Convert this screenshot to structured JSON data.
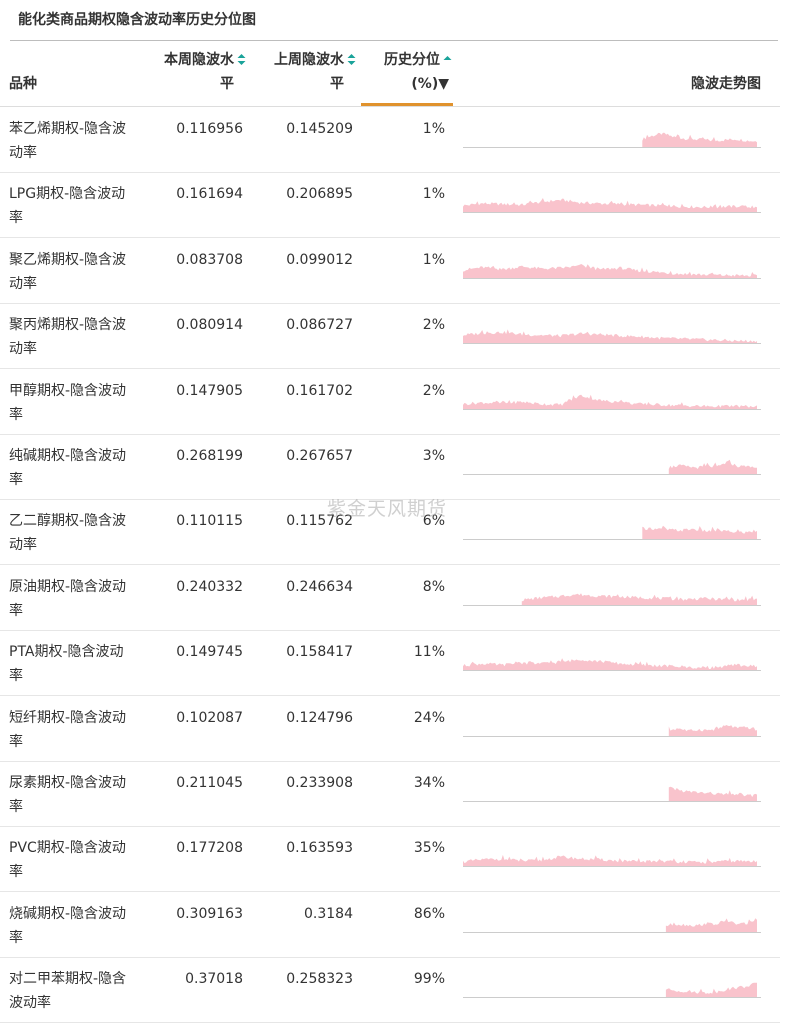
{
  "title": "能化类商品期权隐含波动率历史分位图",
  "watermark": "紫金天风期货",
  "header": {
    "variety": "品种",
    "this_week_line1": "本周隐波水",
    "this_week_line2": "平",
    "last_week_line1": "上周隐波水",
    "last_week_line2": "平",
    "pct_line1": "历史分位",
    "pct_line2": "(%)▼",
    "trend": "隐波走势图",
    "sort_color": "#1aa39a",
    "active_color": "#e0922d"
  },
  "rows": [
    {
      "name": "苯乙烯期权-隐含波动率",
      "this_week": "0.116956",
      "last_week": "0.145209",
      "pct": "1%"
    },
    {
      "name": "LPG期权-隐含波动率",
      "this_week": "0.161694",
      "last_week": "0.206895",
      "pct": "1%"
    },
    {
      "name": "聚乙烯期权-隐含波动率",
      "this_week": "0.083708",
      "last_week": "0.099012",
      "pct": "1%"
    },
    {
      "name": "聚丙烯期权-隐含波动率",
      "this_week": "0.080914",
      "last_week": "0.086727",
      "pct": "2%"
    },
    {
      "name": "甲醇期权-隐含波动率",
      "this_week": "0.147905",
      "last_week": "0.161702",
      "pct": "2%"
    },
    {
      "name": "纯碱期权-隐含波动率",
      "this_week": "0.268199",
      "last_week": "0.267657",
      "pct": "3%"
    },
    {
      "name": "乙二醇期权-隐含波动率",
      "this_week": "0.110115",
      "last_week": "0.115762",
      "pct": "6%"
    },
    {
      "name": "原油期权-隐含波动率",
      "this_week": "0.240332",
      "last_week": "0.246634",
      "pct": "8%"
    },
    {
      "name": "PTA期权-隐含波动率",
      "this_week": "0.149745",
      "last_week": "0.158417",
      "pct": "11%"
    },
    {
      "name": "短纤期权-隐含波动率",
      "this_week": "0.102087",
      "last_week": "0.124796",
      "pct": "24%"
    },
    {
      "name": "尿素期权-隐含波动率",
      "this_week": "0.211045",
      "last_week": "0.233908",
      "pct": "34%"
    },
    {
      "name": "PVC期权-隐含波动率",
      "this_week": "0.177208",
      "last_week": "0.163593",
      "pct": "35%"
    },
    {
      "name": "烧碱期权-隐含波动率",
      "this_week": "0.309163",
      "last_week": "0.3184",
      "pct": "86%"
    },
    {
      "name": "对二甲苯期权-隐含波动率",
      "this_week": "0.37018",
      "last_week": "0.258323",
      "pct": "99%"
    }
  ],
  "chart_data": {
    "type": "area",
    "description_series": "sparkline of implied volatility history per row; start = fraction of full history window where data begins; profile = relative level pattern",
    "fill_color": "#f9c3cc",
    "baseline_color": "#cccccc",
    "sparklines": [
      {
        "start": 0.61,
        "profile": [
          0.55,
          0.8,
          0.95,
          0.7,
          0.6,
          0.55,
          0.5,
          0.45,
          0.5,
          0.55,
          0.45,
          0.4
        ]
      },
      {
        "start": 0.0,
        "profile": [
          0.45,
          0.6,
          0.55,
          0.5,
          0.7,
          0.85,
          0.65,
          0.6,
          0.55,
          0.5,
          0.45,
          0.4,
          0.35,
          0.35,
          0.4,
          0.3
        ]
      },
      {
        "start": 0.0,
        "profile": [
          0.55,
          0.75,
          0.6,
          0.8,
          0.65,
          0.7,
          0.85,
          0.6,
          0.7,
          0.5,
          0.4,
          0.3,
          0.25,
          0.2,
          0.18,
          0.15
        ]
      },
      {
        "start": 0.0,
        "profile": [
          0.55,
          0.7,
          0.75,
          0.6,
          0.55,
          0.5,
          0.65,
          0.6,
          0.5,
          0.45,
          0.35,
          0.3,
          0.25,
          0.2,
          0.15,
          0.12
        ]
      },
      {
        "start": 0.0,
        "profile": [
          0.35,
          0.45,
          0.4,
          0.5,
          0.35,
          0.3,
          0.95,
          0.6,
          0.45,
          0.35,
          0.3,
          0.25,
          0.2,
          0.18,
          0.2,
          0.15
        ]
      },
      {
        "start": 0.7,
        "profile": [
          0.45,
          0.6,
          0.5,
          0.45,
          0.55,
          0.5,
          0.85,
          0.55,
          0.5,
          0.45
        ]
      },
      {
        "start": 0.61,
        "profile": [
          0.75,
          0.7,
          0.65,
          0.6,
          0.7,
          0.55,
          0.6,
          0.5,
          0.45,
          0.55
        ]
      },
      {
        "start": 0.2,
        "profile": [
          0.35,
          0.5,
          0.6,
          0.75,
          0.65,
          0.6,
          0.55,
          0.5,
          0.45,
          0.4,
          0.45,
          0.4,
          0.35,
          0.4
        ]
      },
      {
        "start": 0.0,
        "profile": [
          0.3,
          0.45,
          0.35,
          0.5,
          0.45,
          0.55,
          0.75,
          0.6,
          0.45,
          0.35,
          0.3,
          0.25,
          0.15,
          0.2,
          0.35,
          0.25
        ]
      },
      {
        "start": 0.7,
        "profile": [
          0.4,
          0.55,
          0.35,
          0.45,
          0.4,
          0.5,
          0.75,
          0.55,
          0.6,
          0.45
        ]
      },
      {
        "start": 0.7,
        "profile": [
          0.9,
          0.75,
          0.65,
          0.6,
          0.55,
          0.5,
          0.45,
          0.5,
          0.4,
          0.35
        ]
      },
      {
        "start": 0.0,
        "profile": [
          0.3,
          0.45,
          0.5,
          0.35,
          0.4,
          0.65,
          0.5,
          0.45,
          0.35,
          0.3,
          0.35,
          0.3,
          0.25,
          0.3,
          0.35,
          0.3
        ]
      },
      {
        "start": 0.69,
        "profile": [
          0.45,
          0.55,
          0.5,
          0.45,
          0.6,
          0.55,
          0.8,
          0.55,
          0.6,
          0.9
        ]
      },
      {
        "start": 0.69,
        "profile": [
          0.55,
          0.45,
          0.4,
          0.35,
          0.3,
          0.35,
          0.55,
          0.65,
          0.75,
          1.0
        ]
      }
    ]
  }
}
